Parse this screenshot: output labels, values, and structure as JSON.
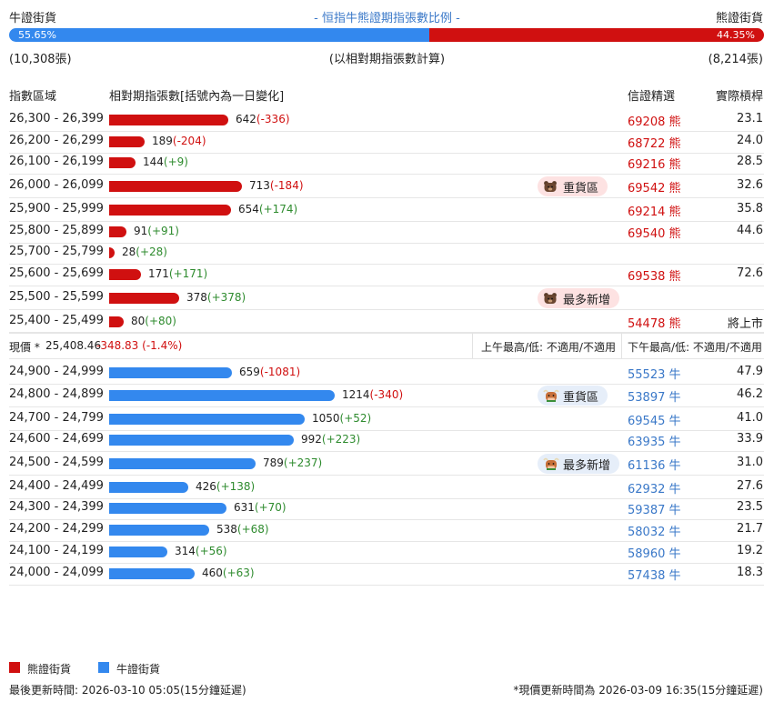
{
  "header": {
    "left_label": "牛證街貨",
    "title": "- 恒指牛熊證期指張數比例 -",
    "right_label": "熊證街貨",
    "bull_pct": "55.65%",
    "bear_pct": "44.35%",
    "bull_fraction": 0.5565,
    "bull_count": "(10,308張)",
    "note": "(以相對期指張數計算)",
    "bear_count": "(8,214張)"
  },
  "columns": {
    "range": "指數區域",
    "contracts": "相對期指張數[括號內為一日變化]",
    "selected": "信證精選",
    "leverage": "實際槓桿"
  },
  "bear_rows": [
    {
      "range": "26,300 - 26,399",
      "value": 642,
      "amount": "642",
      "change": "(-336)",
      "dir": "neg",
      "code": "69208",
      "type": "熊",
      "lev": "23.1",
      "badge": ""
    },
    {
      "range": "26,200 - 26,299",
      "value": 189,
      "amount": "189",
      "change": "(-204)",
      "dir": "neg",
      "code": "68722",
      "type": "熊",
      "lev": "24.0",
      "badge": ""
    },
    {
      "range": "26,100 - 26,199",
      "value": 144,
      "amount": "144",
      "change": "(+9)",
      "dir": "pos",
      "code": "69216",
      "type": "熊",
      "lev": "28.5",
      "badge": ""
    },
    {
      "range": "26,000 - 26,099",
      "value": 713,
      "amount": "713",
      "change": "(-184)",
      "dir": "neg",
      "code": "69542",
      "type": "熊",
      "lev": "32.6",
      "badge": "重貨區"
    },
    {
      "range": "25,900 - 25,999",
      "value": 654,
      "amount": "654",
      "change": "(+174)",
      "dir": "pos",
      "code": "69214",
      "type": "熊",
      "lev": "35.8",
      "badge": ""
    },
    {
      "range": "25,800 - 25,899",
      "value": 91,
      "amount": "91",
      "change": "(+91)",
      "dir": "pos",
      "code": "69540",
      "type": "熊",
      "lev": "44.6",
      "badge": ""
    },
    {
      "range": "25,700 - 25,799",
      "value": 28,
      "amount": "28",
      "change": "(+28)",
      "dir": "pos",
      "code": "",
      "type": "",
      "lev": "",
      "badge": ""
    },
    {
      "range": "25,600 - 25,699",
      "value": 171,
      "amount": "171",
      "change": "(+171)",
      "dir": "pos",
      "code": "69538",
      "type": "熊",
      "lev": "72.6",
      "badge": ""
    },
    {
      "range": "25,500 - 25,599",
      "value": 378,
      "amount": "378",
      "change": "(+378)",
      "dir": "pos",
      "code": "",
      "type": "",
      "lev": "",
      "badge": "最多新增"
    },
    {
      "range": "25,400 - 25,499",
      "value": 80,
      "amount": "80",
      "change": "(+80)",
      "dir": "pos",
      "code": "54478",
      "type": "熊",
      "lev": "將上市",
      "badge": ""
    }
  ],
  "current": {
    "label": "現價 *",
    "price": "25,408.46",
    "change": "-348.83 (-1.4%)",
    "am": "上午最高/低: 不適用/不適用",
    "pm": "下午最高/低: 不適用/不適用"
  },
  "bull_rows": [
    {
      "range": "24,900 - 24,999",
      "value": 659,
      "amount": "659",
      "change": "(-1081)",
      "dir": "neg",
      "code": "55523",
      "type": "牛",
      "lev": "47.9",
      "badge": ""
    },
    {
      "range": "24,800 - 24,899",
      "value": 1214,
      "amount": "1214",
      "change": "(-340)",
      "dir": "neg",
      "code": "53897",
      "type": "牛",
      "lev": "46.2",
      "badge": "重貨區"
    },
    {
      "range": "24,700 - 24,799",
      "value": 1050,
      "amount": "1050",
      "change": "(+52)",
      "dir": "pos",
      "code": "69545",
      "type": "牛",
      "lev": "41.0",
      "badge": ""
    },
    {
      "range": "24,600 - 24,699",
      "value": 992,
      "amount": "992",
      "change": "(+223)",
      "dir": "pos",
      "code": "63935",
      "type": "牛",
      "lev": "33.9",
      "badge": ""
    },
    {
      "range": "24,500 - 24,599",
      "value": 789,
      "amount": "789",
      "change": "(+237)",
      "dir": "pos",
      "code": "61136",
      "type": "牛",
      "lev": "31.0",
      "badge": "最多新增"
    },
    {
      "range": "24,400 - 24,499",
      "value": 426,
      "amount": "426",
      "change": "(+138)",
      "dir": "pos",
      "code": "62932",
      "type": "牛",
      "lev": "27.6",
      "badge": ""
    },
    {
      "range": "24,300 - 24,399",
      "value": 631,
      "amount": "631",
      "change": "(+70)",
      "dir": "pos",
      "code": "59387",
      "type": "牛",
      "lev": "23.5",
      "badge": ""
    },
    {
      "range": "24,200 - 24,299",
      "value": 538,
      "amount": "538",
      "change": "(+68)",
      "dir": "pos",
      "code": "58032",
      "type": "牛",
      "lev": "21.7",
      "badge": ""
    },
    {
      "range": "24,100 - 24,199",
      "value": 314,
      "amount": "314",
      "change": "(+56)",
      "dir": "pos",
      "code": "58960",
      "type": "牛",
      "lev": "19.2",
      "badge": ""
    },
    {
      "range": "24,000 - 24,099",
      "value": 460,
      "amount": "460",
      "change": "(+63)",
      "dir": "pos",
      "code": "57438",
      "type": "牛",
      "lev": "18.3",
      "badge": ""
    }
  ],
  "legend": {
    "bear": "熊證街貨",
    "bull": "牛證街貨"
  },
  "footer": {
    "left": "最後更新時間: 2026-03-10 05:05(15分鐘延遲)",
    "right": "*現價更新時間為 2026-03-09 16:35(15分鐘延遲)"
  },
  "colors": {
    "bear": "#d01010",
    "bull": "#3388ee",
    "positive": "#2e8b2e",
    "negative": "#d01010"
  },
  "icons": {
    "bear_badge": "bear-icon",
    "bull_badge": "bull-icon"
  }
}
